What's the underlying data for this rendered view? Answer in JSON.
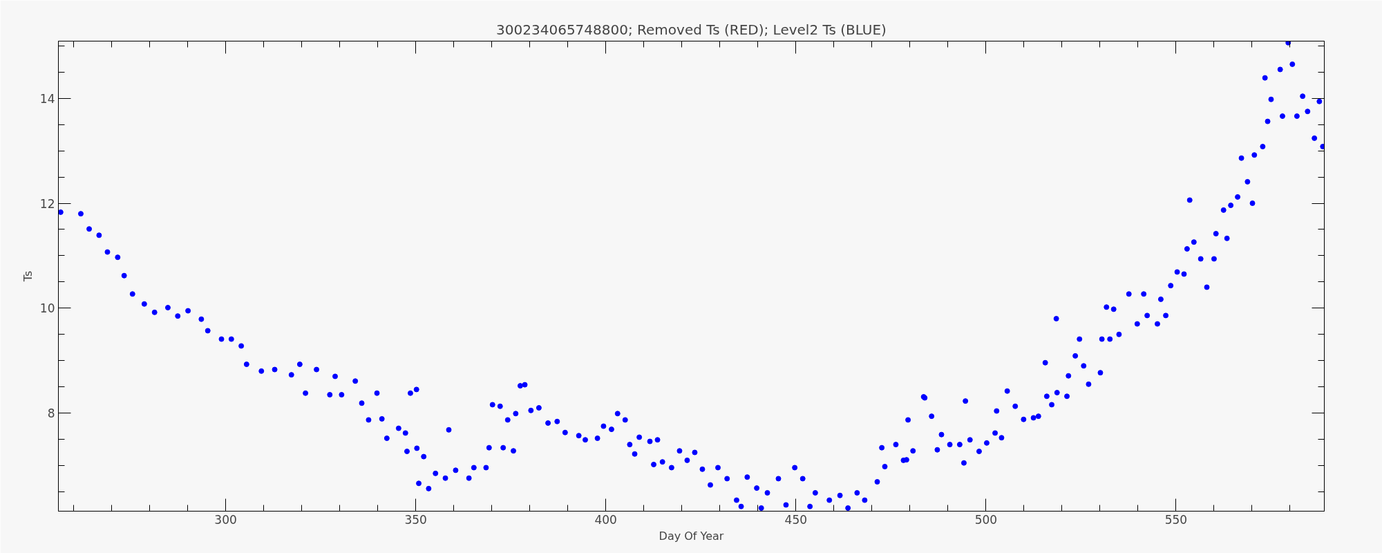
{
  "chart_data": {
    "type": "scatter",
    "title": "300234065748800; Removed Ts (RED); Level2 Ts (BLUE)",
    "xlabel": "Day Of Year",
    "ylabel": "Ts",
    "xlim": [
      256,
      589
    ],
    "ylim": [
      6.13,
      15.09
    ],
    "xticks": [
      300,
      350,
      400,
      450,
      500,
      550
    ],
    "yticks": [
      8,
      10,
      12,
      14
    ],
    "grid": false,
    "marker": "circle",
    "series": [
      {
        "color": "#0000ff",
        "x": [
          256.6,
          261.9,
          264.1,
          266.7,
          268.9,
          271.6,
          273.3,
          275.5,
          278.6,
          281.3,
          284.8,
          287.4,
          290.1,
          293.6,
          295.3,
          298.9,
          301.5,
          304.1,
          305.5,
          309.4,
          312.9,
          317.3,
          319.5,
          321.0,
          323.9,
          327.4,
          328.8,
          330.5,
          334.1,
          335.8,
          337.6,
          339.8,
          341.1,
          342.4,
          345.5,
          347.3,
          347.7,
          348.6,
          350.2,
          350.3,
          350.8,
          352.1,
          353.4,
          355.2,
          357.8,
          358.7,
          360.5,
          364.0,
          365.3,
          368.5,
          369.3,
          370.2,
          372.2,
          373.0,
          374.2,
          375.7,
          376.3,
          377.5,
          378.7,
          380.3,
          382.4,
          384.8,
          387.2,
          389.3,
          392.9,
          394.6,
          397.8,
          399.4,
          401.5,
          403.1,
          405.1,
          406.3,
          407.6,
          408.8,
          411.6,
          412.6,
          413.6,
          414.9,
          417.3,
          419.4,
          421.4,
          423.4,
          425.4,
          427.5,
          429.5,
          431.9,
          434.4,
          435.6,
          437.2,
          439.7,
          440.9,
          442.5,
          445.4,
          447.4,
          449.7,
          451.8,
          453.7,
          455.1,
          458.8,
          461.6,
          463.7,
          466.1,
          468.1,
          471.4,
          472.6,
          473.4,
          476.3,
          478.3,
          479.1,
          479.5,
          480.8,
          483.6,
          483.9,
          485.7,
          487.2,
          488.3,
          490.5,
          493.1,
          494.2,
          494.6,
          495.8,
          498.2,
          500.2,
          502.4,
          502.8,
          504.1,
          505.6,
          507.7,
          509.9,
          512.5,
          513.8,
          515.6,
          516.0,
          517.3,
          518.5,
          518.7,
          521.3,
          521.7,
          523.5,
          524.6,
          525.7,
          527.0,
          530.1,
          530.5,
          531.7,
          532.6,
          533.6,
          535.0,
          537.6,
          539.8,
          541.5,
          542.4,
          545.1,
          546.0,
          547.3,
          548.6,
          550.3,
          552.1,
          552.9,
          553.6,
          554.7,
          556.5,
          558.1,
          560.0,
          560.5,
          562.5,
          563.4,
          564.4,
          566.2,
          567.2,
          568.8,
          570.1,
          570.6,
          572.8,
          573.4,
          574.1,
          575.0,
          577.4,
          578.0,
          579.5,
          580.6,
          581.8,
          583.3,
          584.6,
          586.4,
          587.7,
          588.6
        ],
        "values": [
          11.83,
          11.8,
          11.51,
          11.39,
          11.07,
          10.97,
          10.62,
          10.27,
          10.08,
          9.92,
          10.01,
          9.85,
          9.95,
          9.79,
          9.57,
          9.41,
          9.41,
          9.28,
          8.93,
          8.8,
          8.83,
          8.73,
          8.93,
          8.38,
          8.83,
          8.35,
          8.7,
          8.35,
          8.61,
          8.19,
          7.87,
          8.38,
          7.89,
          7.52,
          7.71,
          7.62,
          7.27,
          8.38,
          8.45,
          7.33,
          6.66,
          7.17,
          6.56,
          6.85,
          6.76,
          7.68,
          6.91,
          6.76,
          6.96,
          6.96,
          7.34,
          8.16,
          8.13,
          7.34,
          7.87,
          7.28,
          7.99,
          8.52,
          8.54,
          8.05,
          8.1,
          7.81,
          7.84,
          7.63,
          7.57,
          7.49,
          7.52,
          7.75,
          7.69,
          7.99,
          7.87,
          7.4,
          7.22,
          7.54,
          7.46,
          7.02,
          7.49,
          7.07,
          6.96,
          7.28,
          7.1,
          7.25,
          6.93,
          6.63,
          6.96,
          6.75,
          6.34,
          6.22,
          6.78,
          6.57,
          6.19,
          6.48,
          6.75,
          6.25,
          6.96,
          6.75,
          6.22,
          6.48,
          6.34,
          6.43,
          6.19,
          6.48,
          6.34,
          6.69,
          7.34,
          6.98,
          7.4,
          7.1,
          7.11,
          7.87,
          7.28,
          8.31,
          8.29,
          7.94,
          7.3,
          7.59,
          7.4,
          7.4,
          7.05,
          8.23,
          7.49,
          7.27,
          7.43,
          7.62,
          8.04,
          7.53,
          8.42,
          8.13,
          7.88,
          7.91,
          7.94,
          8.96,
          8.32,
          8.16,
          9.8,
          8.39,
          8.32,
          8.71,
          9.09,
          9.41,
          8.9,
          8.55,
          8.77,
          9.41,
          10.02,
          9.41,
          9.98,
          9.5,
          10.27,
          9.7,
          10.27,
          9.86,
          9.7,
          10.17,
          9.86,
          10.43,
          10.69,
          10.65,
          11.13,
          12.06,
          11.26,
          10.94,
          10.4,
          10.94,
          11.42,
          11.87,
          11.33,
          11.96,
          12.12,
          12.86,
          12.41,
          12.0,
          12.92,
          13.08,
          14.39,
          13.56,
          13.98,
          14.55,
          13.66,
          15.06,
          14.65,
          13.66,
          14.04,
          13.75,
          13.24,
          13.94,
          13.08
        ]
      }
    ]
  }
}
